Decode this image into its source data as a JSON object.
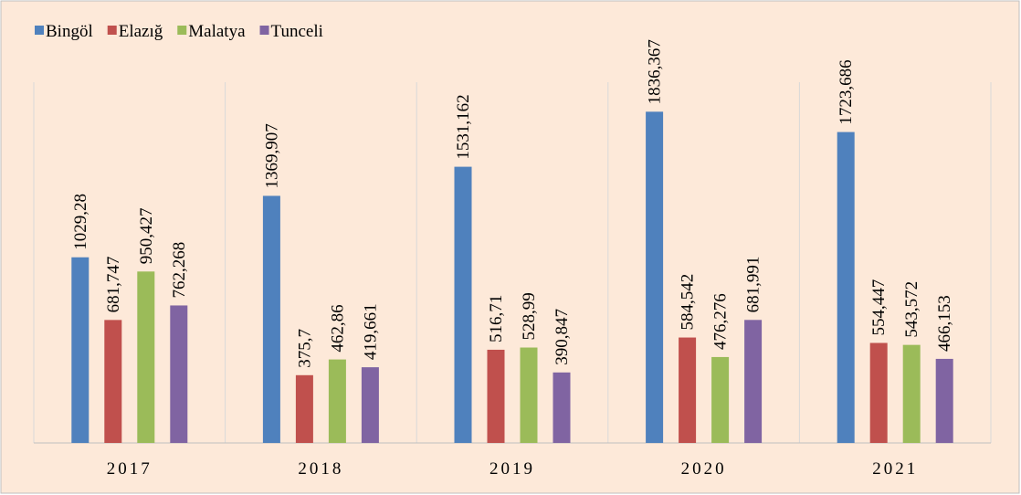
{
  "chart_data": {
    "type": "bar",
    "categories": [
      "2017",
      "2018",
      "2019",
      "2020",
      "2021"
    ],
    "series": [
      {
        "name": "Bingöl",
        "color": "#4f81bd",
        "values": [
          1029.28,
          1369.907,
          1531.162,
          1836.367,
          1723.686
        ],
        "value_labels": [
          "1029,28",
          "1369,907",
          "1531,162",
          "1836,367",
          "1723,686"
        ]
      },
      {
        "name": "Elazığ",
        "color": "#c0504d",
        "values": [
          681.747,
          375.7,
          516.71,
          584.542,
          554.447
        ],
        "value_labels": [
          "681,747",
          "375,7",
          "516,71",
          "584,542",
          "554,447"
        ]
      },
      {
        "name": "Malatya",
        "color": "#9bbb59",
        "values": [
          950.427,
          462.86,
          528.99,
          476.276,
          543.572
        ],
        "value_labels": [
          "950,427",
          "462,86",
          "528,99",
          "476,276",
          "543,572"
        ]
      },
      {
        "name": "Tunceli",
        "color": "#8064a2",
        "values": [
          762.268,
          419.661,
          390.847,
          681.991,
          466.153
        ],
        "value_labels": [
          "762,268",
          "419,661",
          "390,847",
          "681,991",
          "466,153"
        ]
      }
    ],
    "ylim": [
      0,
      2000
    ],
    "legend": "top-left"
  }
}
